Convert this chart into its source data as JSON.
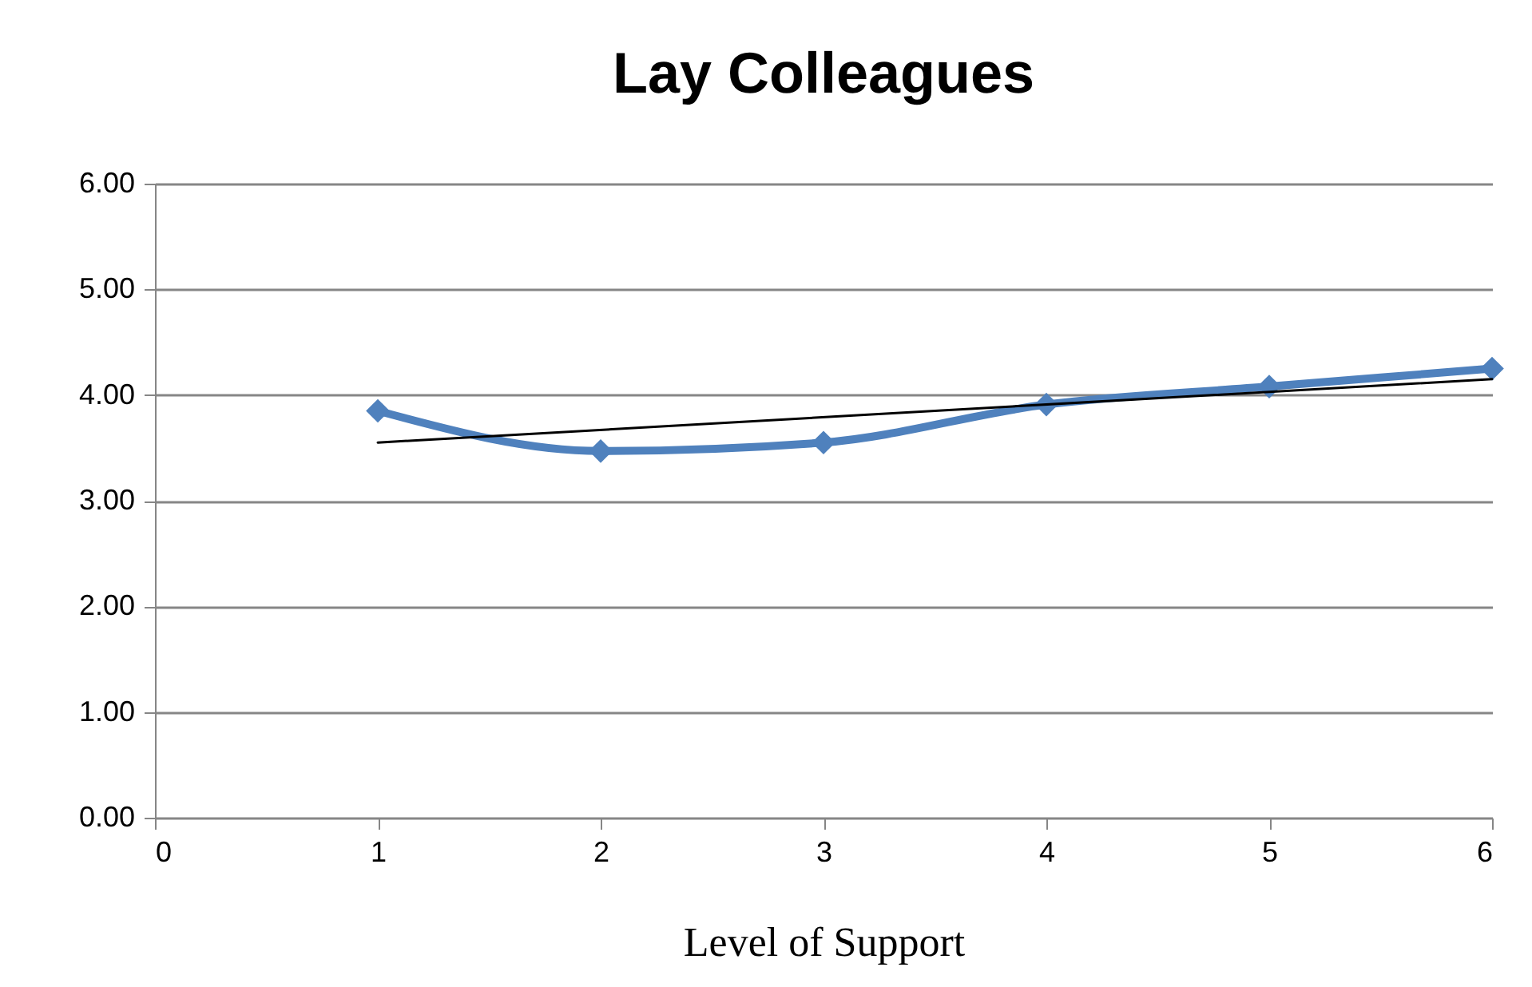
{
  "chart_data": {
    "type": "line",
    "title": "Lay Colleagues",
    "xlabel": "Level of Support",
    "xlim": [
      0,
      6
    ],
    "xticks": [
      0,
      1,
      2,
      3,
      4,
      5,
      6
    ],
    "ylim": [
      0,
      6
    ],
    "yticks": [
      {
        "value": 0,
        "label": "0.00"
      },
      {
        "value": 1,
        "label": "1.00"
      },
      {
        "value": 2,
        "label": "2.00"
      },
      {
        "value": 3,
        "label": "3.00"
      },
      {
        "value": 4,
        "label": "4.00"
      },
      {
        "value": 5,
        "label": "5.00"
      },
      {
        "value": 6,
        "label": "6.00"
      }
    ],
    "grid": "y",
    "series": [
      {
        "color": "#4f81bd",
        "marker": "diamond",
        "x": [
          1,
          2,
          3,
          4,
          5,
          6
        ],
        "values": [
          3.85,
          3.47,
          3.55,
          3.91,
          4.08,
          4.25
        ]
      },
      {
        "color": "#000000",
        "marker": "none",
        "x": [
          1,
          6
        ],
        "values": [
          3.55,
          4.15
        ]
      }
    ]
  }
}
